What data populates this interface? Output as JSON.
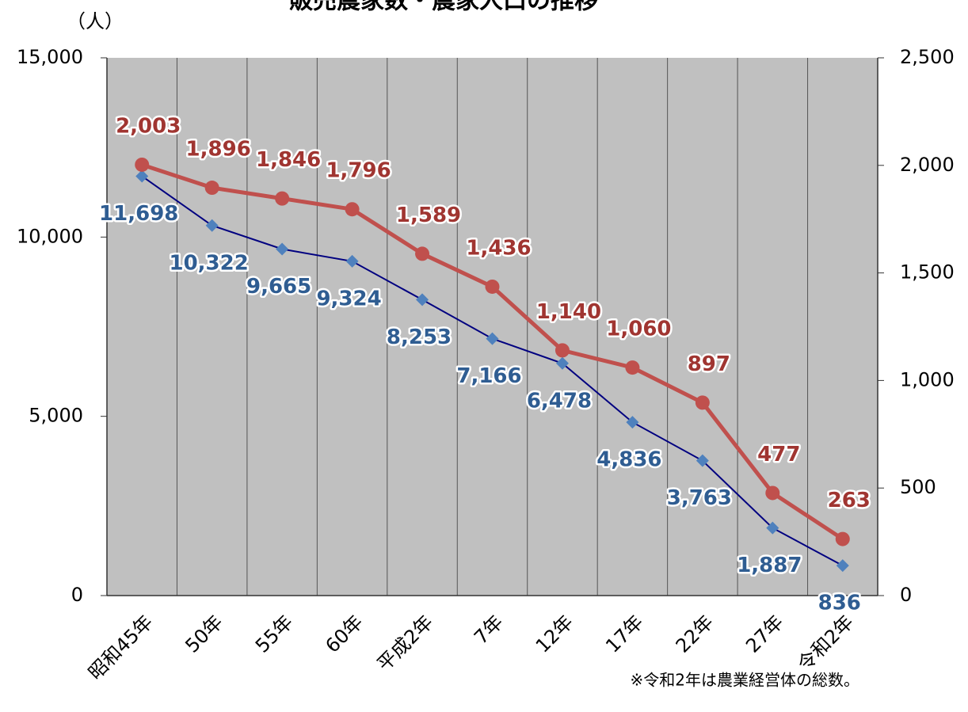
{
  "chart_data": {
    "type": "line",
    "title": "販売農家数・農家人口の推移",
    "y_label": "（人）",
    "annotation": "※令和2年は農業経営体の総数。",
    "categories": [
      "昭和45年",
      "50年",
      "55年",
      "60年",
      "平成2年",
      "7年",
      "12年",
      "17年",
      "22年",
      "27年",
      "令和2年"
    ],
    "ylim": [
      0,
      15000
    ],
    "yticks": [
      0,
      {
        "value": 5000,
        "label": "5,000"
      },
      {
        "value": 10000,
        "label": "10,000"
      },
      {
        "value": 15000,
        "label": "15,000"
      }
    ],
    "y2lim": [
      0,
      2500
    ],
    "y2ticks": [
      0,
      500,
      {
        "value": 1000,
        "label": "1,000"
      },
      {
        "value": 1500,
        "label": "1,500"
      },
      {
        "value": 2000,
        "label": "2,000"
      },
      {
        "value": 2500,
        "label": "2,500"
      }
    ],
    "series": [
      {
        "color": "#000080",
        "marker_color": "#4f81bd",
        "marker": "diamond",
        "values": [
          11698,
          10322,
          9665,
          9324,
          8253,
          7166,
          6478,
          4836,
          3763,
          1887,
          836
        ],
        "value_labels": [
          "11,698",
          "10,322",
          "9,665",
          "9,324",
          "8,253",
          "7,166",
          "6,478",
          "4,836",
          "3,763",
          "1,887",
          "836"
        ]
      },
      {
        "color": "#c0504d",
        "marker_color": "#c0504d",
        "marker": "circle",
        "axis": "y2",
        "values": [
          2003,
          1896,
          1846,
          1796,
          1589,
          1436,
          1140,
          1060,
          897,
          477,
          263
        ],
        "value_labels": [
          "2,003",
          "1,896",
          "1,846",
          "1,796",
          "1,589",
          "1,436",
          "1,140",
          "1,060",
          "897",
          "477",
          "263"
        ]
      }
    ]
  }
}
